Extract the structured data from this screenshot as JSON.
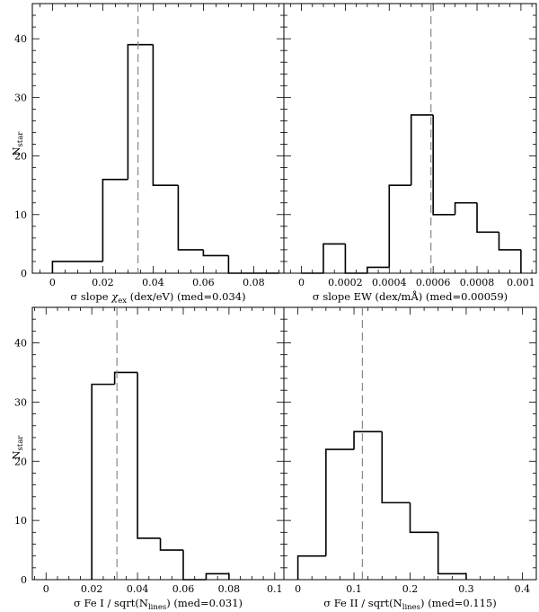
{
  "figure": {
    "ylabel_main": "N",
    "ylabel_sub": "star"
  },
  "chart_data": [
    {
      "type": "histogram",
      "xlabel": {
        "prefix": "σ slope ",
        "sym": "χ",
        "sub": "ex",
        "suffix": " (dex/eV) (med=0.034)"
      },
      "xlim": [
        -0.008,
        0.092
      ],
      "ylim": [
        0,
        46
      ],
      "xticks": [
        0,
        0.02,
        0.04,
        0.06,
        0.08
      ],
      "xticklabels": [
        "0",
        "0.02",
        "0.04",
        "0.06",
        "0.08"
      ],
      "yticks": [
        0,
        10,
        20,
        30,
        40
      ],
      "yticklabels": [
        "0",
        "10",
        "20",
        "30",
        "40"
      ],
      "bin_edges": [
        0,
        0.01,
        0.02,
        0.03,
        0.04,
        0.05,
        0.06,
        0.07,
        0.08,
        0.09
      ],
      "counts": [
        2,
        2,
        16,
        39,
        15,
        4,
        3,
        0,
        0
      ],
      "median": 0.034,
      "median_line": "dashed gray"
    },
    {
      "type": "histogram",
      "xlabel": {
        "prefix": "σ slope EW (dex/mÅ) (med=0.00059)"
      },
      "xlim": [
        -8e-05,
        0.00107
      ],
      "ylim": [
        0,
        46
      ],
      "xticks": [
        0,
        0.0002,
        0.0004,
        0.0006,
        0.0008,
        0.001
      ],
      "xticklabels": [
        "0",
        "0.0002",
        "0.0004",
        "0.0006",
        "0.0008",
        "0.001"
      ],
      "yticks": [
        0,
        10,
        20,
        30,
        40
      ],
      "yticklabels": [
        "",
        "",
        "",
        "",
        ""
      ],
      "bin_edges": [
        0,
        0.0001,
        0.0002,
        0.0003,
        0.0004,
        0.0005,
        0.0006,
        0.0007,
        0.0008,
        0.0009,
        0.001
      ],
      "counts": [
        0,
        5,
        0,
        1,
        15,
        27,
        10,
        12,
        7,
        4
      ],
      "median": 0.00059,
      "median_line": "dashed gray"
    },
    {
      "type": "histogram",
      "xlabel": {
        "prefix": "σ Fe I / sqrt(N",
        "sub": "lines",
        "suffix": ") (med=0.031)"
      },
      "xlim": [
        -0.006,
        0.104
      ],
      "ylim": [
        0,
        46
      ],
      "xticks": [
        0,
        0.02,
        0.04,
        0.06,
        0.08,
        0.1
      ],
      "xticklabels": [
        "0",
        "0.02",
        "0.04",
        "0.06",
        "0.08",
        "0.1"
      ],
      "yticks": [
        0,
        10,
        20,
        30,
        40
      ],
      "yticklabels": [
        "0",
        "10",
        "20",
        "30",
        "40"
      ],
      "bin_edges": [
        0.02,
        0.03,
        0.04,
        0.05,
        0.06,
        0.07,
        0.08
      ],
      "counts": [
        33,
        35,
        7,
        5,
        0,
        1
      ],
      "median": 0.031,
      "median_line": "dashed gray"
    },
    {
      "type": "histogram",
      "xlabel": {
        "prefix": "σ Fe II / sqrt(N",
        "sub": "lines",
        "suffix": ") (med=0.115)"
      },
      "xlim": [
        -0.025,
        0.425
      ],
      "ylim": [
        0,
        46
      ],
      "xticks": [
        0,
        0.1,
        0.2,
        0.3,
        0.4
      ],
      "xticklabels": [
        "0",
        "0.1",
        "0.2",
        "0.3",
        "0.4"
      ],
      "yticks": [
        0,
        10,
        20,
        30,
        40
      ],
      "yticklabels": [
        "",
        "",
        "",
        "",
        ""
      ],
      "bin_edges": [
        0,
        0.05,
        0.1,
        0.15,
        0.2,
        0.25,
        0.3
      ],
      "counts": [
        4,
        22,
        25,
        13,
        8,
        1
      ],
      "median": 0.115,
      "median_line": "dashed gray"
    }
  ]
}
